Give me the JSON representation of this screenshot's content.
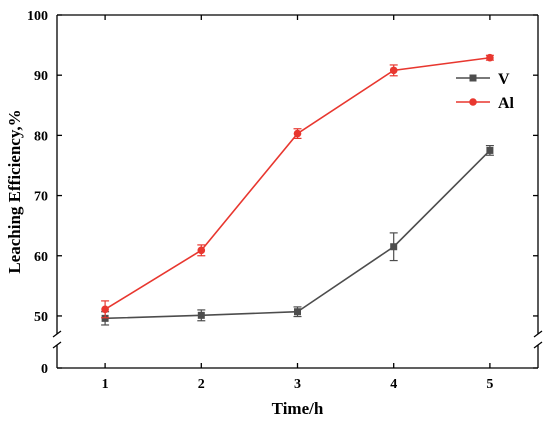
{
  "chart_data": {
    "type": "line",
    "xlabel": "Time/h",
    "ylabel": "Leaching Efficiency,%",
    "x": [
      1,
      2,
      3,
      4,
      5
    ],
    "xticks": [
      "1",
      "2",
      "3",
      "4",
      "5"
    ],
    "yticks": [
      "0",
      "50",
      "60",
      "70",
      "80",
      "90",
      "100"
    ],
    "xlim": [
      0.5,
      5.5
    ],
    "ylim": [
      0,
      100
    ],
    "y_axis_break": [
      3,
      47
    ],
    "grid": false,
    "legend_position": "top-right",
    "series": [
      {
        "name": "V",
        "color": "#4d4d4d",
        "marker": "square",
        "values": [
          49.6,
          50.1,
          50.7,
          61.5,
          77.5
        ],
        "errors": [
          1.1,
          0.9,
          0.8,
          2.3,
          0.8
        ]
      },
      {
        "name": "Al",
        "color": "#e8372f",
        "marker": "circle",
        "values": [
          51.1,
          60.9,
          80.3,
          90.8,
          92.9
        ],
        "errors": [
          1.4,
          0.9,
          0.8,
          0.9,
          0.4
        ]
      }
    ]
  }
}
